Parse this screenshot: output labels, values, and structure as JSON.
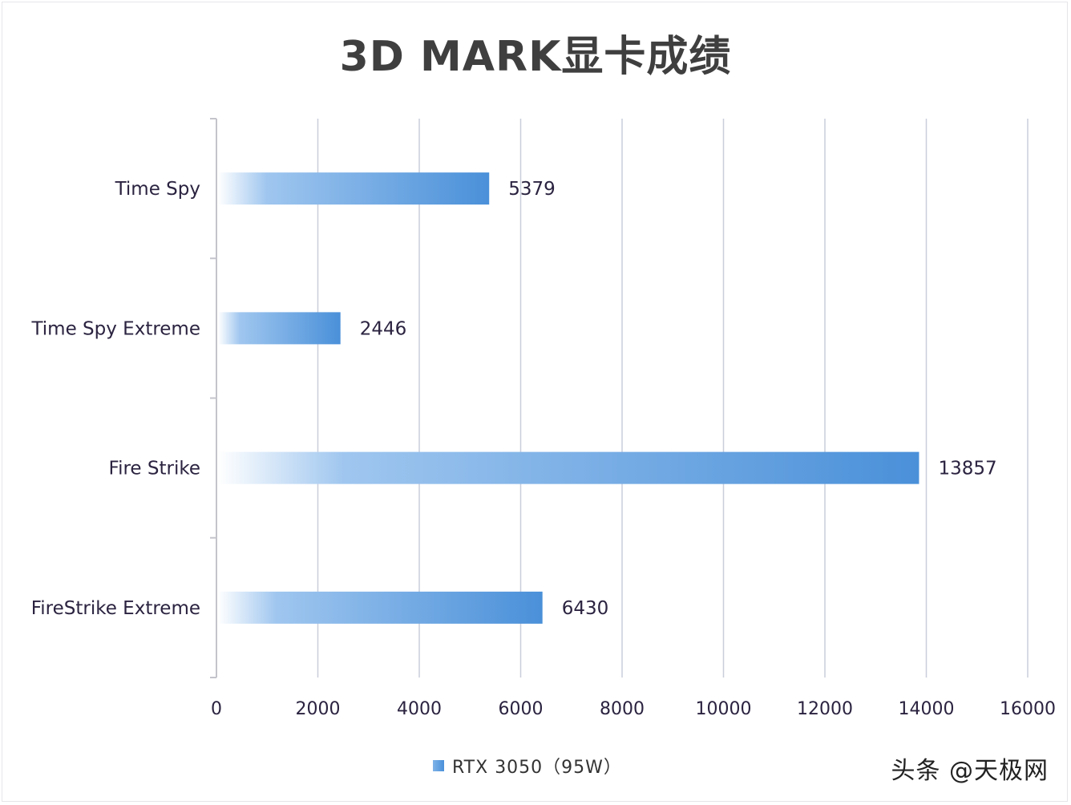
{
  "chart_data": {
    "type": "bar",
    "orientation": "horizontal",
    "title": "3D MARK显卡成绩",
    "categories": [
      "Time Spy",
      "Time Spy Extreme",
      "Fire Strike",
      "FireStrike Extreme"
    ],
    "series": [
      {
        "name": "RTX 3050（95W）",
        "values": [
          5379,
          2446,
          13857,
          6430
        ],
        "color": "#4a90d9"
      }
    ],
    "xlim": [
      0,
      16000
    ],
    "xticks": [
      0,
      2000,
      4000,
      6000,
      8000,
      10000,
      12000,
      14000,
      16000
    ],
    "xlabel": "",
    "ylabel": "",
    "grid": "vertical",
    "legend_position": "bottom"
  },
  "watermark": "头条 @天极网"
}
